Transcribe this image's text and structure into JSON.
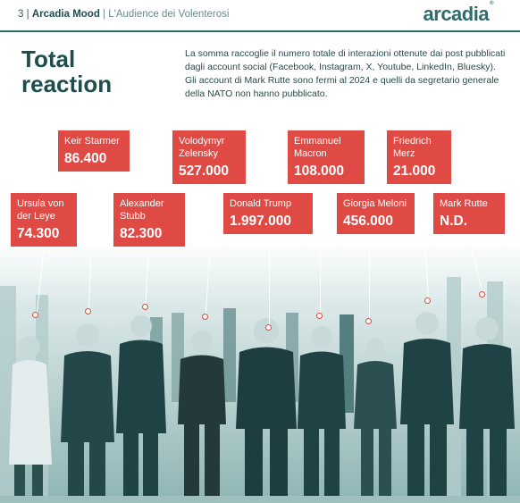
{
  "header": {
    "page_number": "3",
    "separator": "|",
    "brand": "Arcadia Mood",
    "separator2": "|",
    "subtitle": "L'Audience dei Volenterosi",
    "logo": "arcadia",
    "logo_mark": "®"
  },
  "title": {
    "line1": "Total",
    "line2": "reaction"
  },
  "intro": "La somma raccoglie il numero totale di interazioni ottenute dai post pubblicati dagli account social (Facebook, Instagram, X, Youtube, LinkedIn, Bluesky). Gli account di Mark Rutte sono fermi al 2024 e quelli da segretario generale della NATO non hanno pubblicato.",
  "leaders": [
    {
      "name": "Ursula von der Leye",
      "value": "74.300"
    },
    {
      "name": "Keir Starmer",
      "value": "86.400"
    },
    {
      "name": "Alexander Stubb",
      "value": "82.300"
    },
    {
      "name": "Volodymyr Zelensky",
      "value": "527.000"
    },
    {
      "name": "Donald Trump",
      "value": "1.997.000"
    },
    {
      "name": "Emmanuel Macron",
      "value": "108.000"
    },
    {
      "name": "Giorgia Meloni",
      "value": "456.000"
    },
    {
      "name": "Friedrich Merz",
      "value": "21.000"
    },
    {
      "name": "Mark Rutte",
      "value": "N.D."
    }
  ],
  "colors": {
    "teal": "#2f6b6b",
    "red": "#e04a45",
    "photo_tint": "#6f9e9e"
  }
}
